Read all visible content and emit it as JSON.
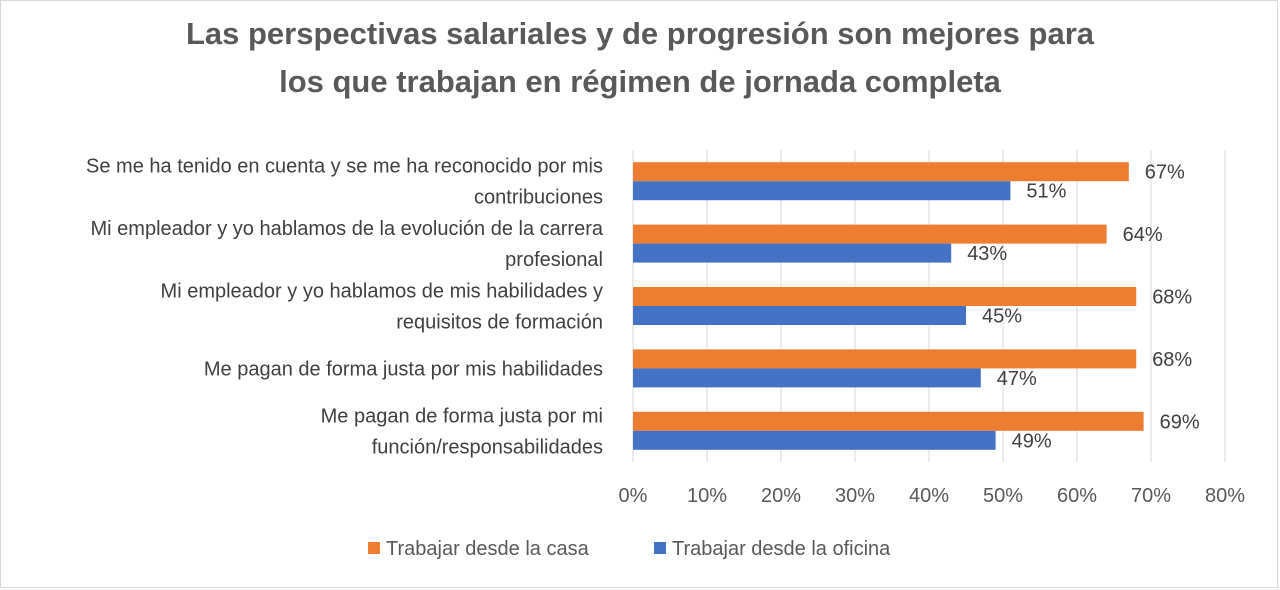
{
  "chart_data": {
    "type": "bar",
    "orientation": "horizontal",
    "title": "Las perspectivas salariales y de progresión son mejores para los que trabajan en régimen de jornada completa",
    "title_lines": [
      "Las perspectivas salariales y de progresión son mejores para",
      "los que trabajan en régimen de jornada completa"
    ],
    "categories": [
      [
        "Se me ha tenido en cuenta y se me ha reconocido por mis",
        "contribuciones"
      ],
      [
        "Mi empleador y yo hablamos de la evolución de la carrera",
        "profesional"
      ],
      [
        "Mi empleador y yo hablamos de mis habilidades y",
        "requisitos de formación"
      ],
      [
        "Me pagan de forma justa por mis habilidades"
      ],
      [
        "Me pagan de forma justa por mi",
        "función/responsabilidades"
      ]
    ],
    "series": [
      {
        "name": "Trabajar desde la casa",
        "color": "#ED7D31",
        "values": [
          67,
          64,
          68,
          68,
          69
        ]
      },
      {
        "name": "Trabajar desde la oficina",
        "color": "#4472C4",
        "values": [
          51,
          43,
          45,
          47,
          49
        ]
      }
    ],
    "value_suffix": "%",
    "xlim": [
      0,
      80
    ],
    "xticks": [
      0,
      10,
      20,
      30,
      40,
      50,
      60,
      70,
      80
    ],
    "grid": true,
    "legend": "bottom",
    "gridline_color": "#d9d9d9"
  }
}
